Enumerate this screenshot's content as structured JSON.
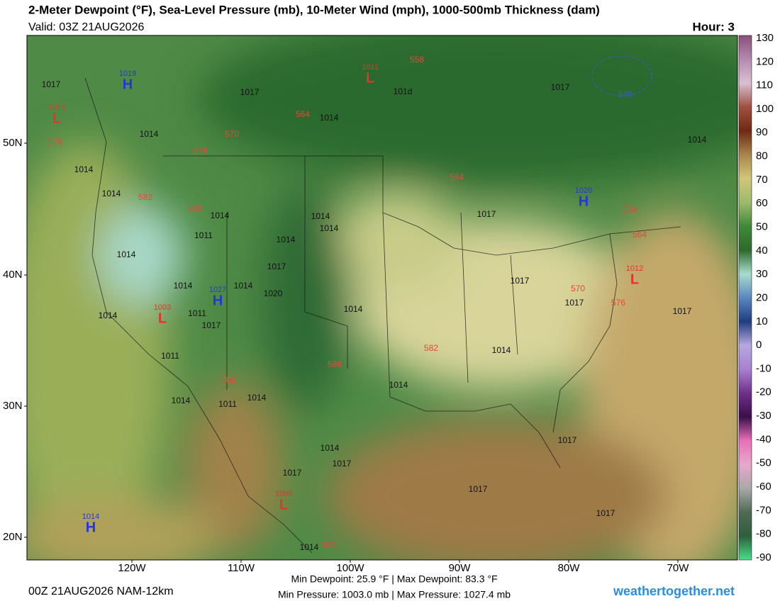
{
  "header": {
    "title": "2-Meter Dewpoint (°F), Sea-Level Pressure (mb), 10-Meter Wind (mph), 1000-500mb Thickness (dam)",
    "valid": "Valid: 03Z 21AUG2026",
    "hour": "Hour: 3"
  },
  "map": {
    "lat_labels": [
      "50N",
      "40N",
      "30N",
      "20N"
    ],
    "lon_labels": [
      "120W",
      "110W",
      "100W",
      "90W",
      "80W",
      "70W"
    ],
    "centers": [
      {
        "letter": "H",
        "value": "1019",
        "color": "#2636d8"
      },
      {
        "letter": "L",
        "value": "1015",
        "color": "#e8322a"
      },
      {
        "letter": "L",
        "value": "1011",
        "color": "#e8322a"
      },
      {
        "letter": "H",
        "value": "1020",
        "color": "#2636d8"
      },
      {
        "letter": "H",
        "value": "1027",
        "color": "#2636d8"
      },
      {
        "letter": "L",
        "value": "1003",
        "color": "#e8322a"
      },
      {
        "letter": "L",
        "value": "1012",
        "color": "#e8322a"
      },
      {
        "letter": "L",
        "value": "1009",
        "color": "#e8322a"
      },
      {
        "letter": "H",
        "value": "1014",
        "color": "#2636d8"
      }
    ],
    "isobar_labels": [
      "1017",
      "1017",
      "1014",
      "1014",
      "1014",
      "1014",
      "101d",
      "1017",
      "1014",
      "1014",
      "1014",
      "1014",
      "1017",
      "1011",
      "1014",
      "1014",
      "1017",
      "1014",
      "1014",
      "1020",
      "1014",
      "1011",
      "1017",
      "1014",
      "1017",
      "1017",
      "1017",
      "1014",
      "1011",
      "1014",
      "1014",
      "1011",
      "1014",
      "1014",
      "1017",
      "1017",
      "1017",
      "1017",
      "1017",
      "1014"
    ],
    "thickness_labels": [
      "558",
      "564",
      "570",
      "576",
      "576",
      "582",
      "588",
      "564",
      "558",
      "564",
      "570",
      "576",
      "582",
      "588",
      "588",
      "582",
      "540"
    ]
  },
  "colorbar": {
    "ticks": [
      130,
      120,
      110,
      100,
      90,
      80,
      70,
      60,
      50,
      40,
      30,
      20,
      10,
      0,
      -10,
      -20,
      -30,
      -40,
      -50,
      -60,
      -70,
      -80,
      -90
    ],
    "colors": [
      "#8a4e7a",
      "#b58ab0",
      "#d9c0d2",
      "#a05040",
      "#6e2a14",
      "#a8864a",
      "#d2c67a",
      "#9cbb6a",
      "#3f8a3a",
      "#2d6a2a",
      "#a8dccd",
      "#5a88c0",
      "#1e3e7e",
      "#b8a8e0",
      "#a880d0",
      "#70308a",
      "#3a0f4a",
      "#e870b8",
      "#e8a8cc",
      "#a8a8a8",
      "#506a54",
      "#2e5e3c",
      "#48e08a"
    ]
  },
  "footer": {
    "run": "00Z 21AUG2026 NAM-12km",
    "dewpoint": "Min Dewpoint:  25.9 °F | Max Dewpoint:  83.3 °F",
    "pressure": "Min Pressure: 1003.0 mb | Max Pressure: 1027.4 mb",
    "credit": "weathertogether.net"
  }
}
